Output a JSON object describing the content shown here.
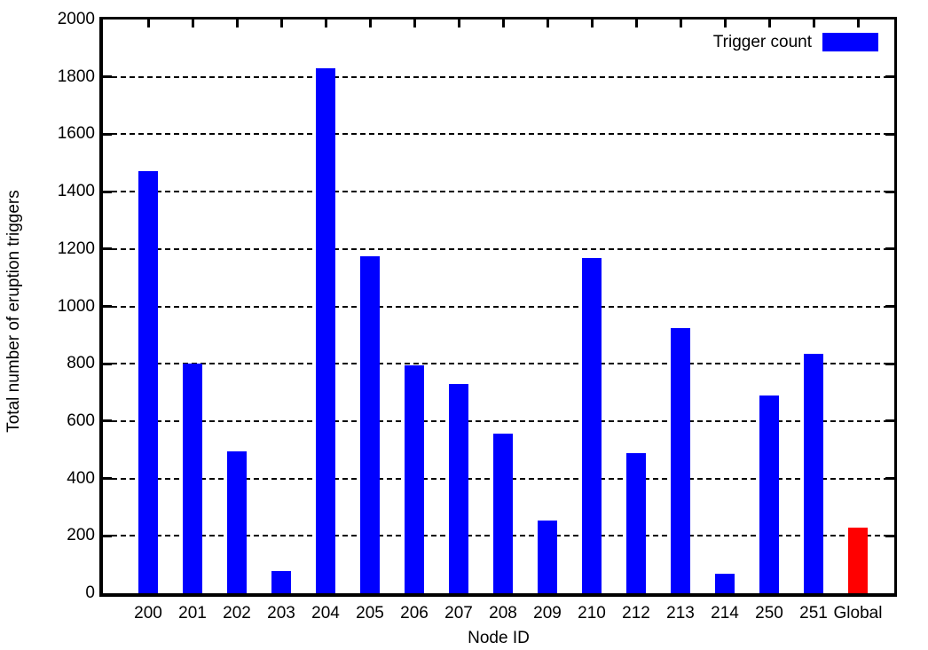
{
  "chart_data": {
    "type": "bar",
    "title": "",
    "xlabel": "Node ID",
    "ylabel": "Total number of eruption triggers",
    "legend": {
      "label": "Trigger count",
      "position": "top-right-inside"
    },
    "categories": [
      "200",
      "201",
      "202",
      "203",
      "204",
      "205",
      "206",
      "207",
      "208",
      "209",
      "210",
      "212",
      "213",
      "214",
      "250",
      "251",
      "Global"
    ],
    "values": [
      1473,
      800,
      495,
      78,
      1830,
      1175,
      793,
      730,
      557,
      254,
      1170,
      490,
      925,
      68,
      690,
      836,
      228
    ],
    "bar_colors": [
      "#0000ff",
      "#0000ff",
      "#0000ff",
      "#0000ff",
      "#0000ff",
      "#0000ff",
      "#0000ff",
      "#0000ff",
      "#0000ff",
      "#0000ff",
      "#0000ff",
      "#0000ff",
      "#0000ff",
      "#0000ff",
      "#0000ff",
      "#0000ff",
      "#ff0000"
    ],
    "ylim": [
      0,
      2000
    ],
    "ytick_step": 200,
    "yticks": [
      "0",
      "200",
      "400",
      "600",
      "800",
      "1000",
      "1200",
      "1400",
      "1600",
      "1800",
      "2000"
    ],
    "grid": "horizontal-dashed",
    "axis_color": "#000000",
    "background_color": "#ffffff"
  }
}
